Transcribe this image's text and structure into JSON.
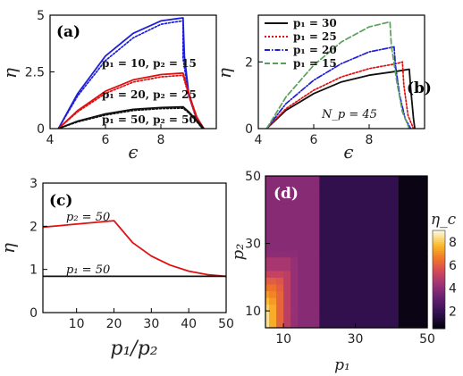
{
  "chart_data": [
    {
      "panel": "(a)",
      "type": "line",
      "xlabel": "ϵ",
      "ylabel": "η",
      "xlim": [
        4,
        10
      ],
      "ylim": [
        0,
        5
      ],
      "xticks": [
        "4",
        "6",
        "8"
      ],
      "yticks": [
        "0",
        "2.5",
        "5"
      ],
      "annotations": [
        "p₁ = 10, p₂ = 15",
        "p₁ = 20, p₂ = 25",
        "p₁ = 50, p₂ = 50"
      ],
      "series": [
        {
          "color": "#1f1fd6",
          "style": "solid",
          "x": [
            4.3,
            5,
            6,
            7,
            8,
            8.6,
            8.8,
            8.85,
            9.0,
            9.3,
            9.5
          ],
          "y": [
            0,
            1.55,
            3.2,
            4.2,
            4.75,
            4.85,
            4.88,
            3.2,
            1.6,
            0.4,
            0
          ]
        },
        {
          "color": "#1f1fd6",
          "style": "dotted",
          "x": [
            4.3,
            5,
            6,
            7,
            8,
            8.6,
            8.8,
            8.8,
            9.0,
            9.3,
            9.5
          ],
          "y": [
            0,
            1.45,
            3.0,
            4.0,
            4.6,
            4.72,
            4.75,
            3.1,
            1.5,
            0.35,
            0
          ]
        },
        {
          "color": "#e01010",
          "style": "solid",
          "x": [
            4.3,
            5,
            6,
            7,
            8,
            8.8,
            8.9,
            9.1,
            9.3,
            9.55
          ],
          "y": [
            0,
            0.8,
            1.65,
            2.15,
            2.38,
            2.45,
            2.0,
            1.2,
            0.5,
            0
          ]
        },
        {
          "color": "#e01010",
          "style": "dotted",
          "x": [
            4.3,
            5,
            6,
            7,
            8,
            8.8,
            8.9,
            9.1,
            9.3,
            9.5
          ],
          "y": [
            0,
            0.75,
            1.55,
            2.05,
            2.28,
            2.35,
            1.9,
            1.1,
            0.45,
            0
          ]
        },
        {
          "color": "#111111",
          "style": "solid",
          "x": [
            4.3,
            5,
            6,
            7,
            8,
            8.8,
            9.0,
            9.3,
            9.55
          ],
          "y": [
            0,
            0.33,
            0.65,
            0.85,
            0.93,
            0.96,
            0.75,
            0.35,
            0
          ]
        },
        {
          "color": "#111111",
          "style": "dotted",
          "x": [
            4.3,
            5,
            6,
            7,
            8,
            8.8,
            9.0,
            9.3,
            9.5
          ],
          "y": [
            0,
            0.3,
            0.6,
            0.8,
            0.88,
            0.9,
            0.7,
            0.3,
            0
          ]
        }
      ]
    },
    {
      "panel": "(b)",
      "type": "line",
      "xlabel": "ϵ",
      "ylabel": "η",
      "xlim": [
        4,
        10
      ],
      "ylim": [
        0,
        3.4
      ],
      "xticks": [
        "4",
        "6",
        "8"
      ],
      "yticks": [
        "0",
        "2"
      ],
      "annotation": "N_p = 45",
      "legend_position": "top-left",
      "series": [
        {
          "name": "p₁ = 30",
          "color": "#111111",
          "style": "solid",
          "x": [
            4.3,
            5,
            6,
            7,
            8,
            9,
            9.45,
            9.5,
            9.6,
            9.65
          ],
          "y": [
            0,
            0.55,
            1.05,
            1.4,
            1.6,
            1.72,
            1.78,
            1.2,
            0.3,
            0
          ]
        },
        {
          "name": "p₁ = 25",
          "color": "#e01010",
          "style": "dotted",
          "x": [
            4.3,
            5,
            6,
            7,
            8,
            9,
            9.2,
            9.25,
            9.4,
            9.6
          ],
          "y": [
            0,
            0.6,
            1.15,
            1.55,
            1.8,
            1.95,
            2.0,
            1.3,
            0.4,
            0
          ]
        },
        {
          "name": "p₁ = 20",
          "color": "#1f1fd6",
          "style": "dashdot",
          "x": [
            4.3,
            5,
            6,
            7,
            8,
            8.9,
            8.95,
            9.1,
            9.3,
            9.5
          ],
          "y": [
            0,
            0.75,
            1.45,
            1.95,
            2.3,
            2.45,
            1.9,
            1.0,
            0.3,
            0
          ]
        },
        {
          "name": "p₁ = 15",
          "color": "#5aa05a",
          "style": "dashed",
          "x": [
            4.3,
            5,
            6,
            7,
            8,
            8.75,
            8.8,
            9.0,
            9.2,
            9.45
          ],
          "y": [
            0,
            0.95,
            1.9,
            2.6,
            3.05,
            3.2,
            2.5,
            1.4,
            0.5,
            0
          ]
        }
      ]
    },
    {
      "panel": "(c)",
      "type": "line",
      "xlabel": "p₁/p₂",
      "ylabel": "η",
      "xlim": [
        1,
        50
      ],
      "ylim": [
        0,
        3
      ],
      "xticks": [
        "10",
        "20",
        "30",
        "40",
        "50"
      ],
      "yticks": [
        "0",
        "1",
        "2",
        "3"
      ],
      "annotations": [
        "p₂ = 50",
        "p₁ = 50"
      ],
      "series": [
        {
          "color": "#e01010",
          "style": "solid",
          "x": [
            1,
            5,
            10,
            15,
            20,
            25,
            30,
            35,
            40,
            45,
            50
          ],
          "y": [
            1.98,
            2.01,
            2.05,
            2.09,
            2.13,
            1.62,
            1.31,
            1.1,
            0.96,
            0.88,
            0.84
          ]
        },
        {
          "color": "#111111",
          "style": "solid",
          "x": [
            1,
            50
          ],
          "y": [
            0.84,
            0.84
          ]
        }
      ]
    },
    {
      "panel": "(d)",
      "type": "heatmap",
      "xlabel": "p₁",
      "ylabel": "p₂",
      "colorbar_label": "η_c",
      "xlim": [
        5,
        50
      ],
      "ylim": [
        5,
        50
      ],
      "xticks": [
        "10",
        "30",
        "50"
      ],
      "yticks": [
        "10",
        "30",
        "50"
      ],
      "colorbar_ticks": [
        "2",
        "4",
        "6",
        "8"
      ],
      "colorbar_range": [
        0.5,
        9
      ],
      "x": [
        5,
        7,
        9,
        11,
        13,
        15,
        17,
        19,
        21,
        23,
        25,
        27,
        29,
        31,
        33,
        35,
        37,
        39,
        41,
        43,
        45,
        47,
        49
      ],
      "y": [
        5,
        7,
        9,
        11,
        13,
        15,
        17,
        19,
        21,
        23,
        25,
        27,
        29,
        31,
        33,
        35,
        37,
        39,
        41,
        43,
        45,
        47,
        49
      ],
      "values": [
        [
          8.5,
          7.5,
          6.2,
          5.0,
          4.2,
          3.9,
          3.9,
          3.9,
          1.9,
          1.9,
          1.9,
          1.9,
          1.9,
          1.9,
          1.9,
          1.9,
          1.9,
          1.9,
          1.9,
          0.8,
          0.8,
          0.8,
          0.8
        ],
        [
          8.5,
          7.5,
          6.2,
          5.0,
          4.2,
          3.9,
          3.9,
          3.9,
          1.9,
          1.9,
          1.9,
          1.9,
          1.9,
          1.9,
          1.9,
          1.9,
          1.9,
          1.9,
          1.9,
          0.8,
          0.8,
          0.8,
          0.8
        ],
        [
          8.5,
          7.5,
          6.2,
          5.0,
          4.2,
          3.9,
          3.9,
          3.9,
          1.9,
          1.9,
          1.9,
          1.9,
          1.9,
          1.9,
          1.9,
          1.9,
          1.9,
          1.9,
          1.9,
          0.8,
          0.8,
          0.8,
          0.8
        ],
        [
          8.2,
          7.5,
          6.2,
          5.0,
          4.2,
          3.9,
          3.9,
          3.9,
          1.9,
          1.9,
          1.9,
          1.9,
          1.9,
          1.9,
          1.9,
          1.9,
          1.9,
          1.9,
          1.9,
          0.8,
          0.8,
          0.8,
          0.8
        ],
        [
          7.8,
          7.2,
          6.2,
          5.0,
          4.2,
          3.9,
          3.9,
          3.9,
          1.9,
          1.9,
          1.9,
          1.9,
          1.9,
          1.9,
          1.9,
          1.9,
          1.9,
          1.9,
          1.9,
          0.8,
          0.8,
          0.8,
          0.8
        ],
        [
          7.2,
          6.8,
          6.2,
          5.0,
          4.2,
          3.9,
          3.9,
          3.9,
          1.9,
          1.9,
          1.9,
          1.9,
          1.9,
          1.9,
          1.9,
          1.9,
          1.9,
          1.9,
          1.9,
          0.8,
          0.8,
          0.8,
          0.8
        ],
        [
          6.5,
          6.5,
          6.0,
          5.0,
          4.2,
          3.9,
          3.9,
          3.9,
          1.9,
          1.9,
          1.9,
          1.9,
          1.9,
          1.9,
          1.9,
          1.9,
          1.9,
          1.9,
          1.9,
          0.8,
          0.8,
          0.8,
          0.8
        ],
        [
          6.0,
          6.0,
          5.8,
          5.0,
          4.2,
          3.9,
          3.9,
          3.9,
          1.9,
          1.9,
          1.9,
          1.9,
          1.9,
          1.9,
          1.9,
          1.9,
          1.9,
          1.9,
          1.9,
          0.8,
          0.8,
          0.8,
          0.8
        ],
        [
          5.2,
          5.2,
          5.2,
          5.0,
          4.2,
          3.9,
          3.9,
          3.9,
          1.9,
          1.9,
          1.9,
          1.9,
          1.9,
          1.9,
          1.9,
          1.9,
          1.9,
          1.9,
          1.9,
          0.8,
          0.8,
          0.8,
          0.8
        ],
        [
          4.6,
          4.6,
          4.6,
          4.6,
          4.2,
          3.9,
          3.9,
          3.9,
          1.9,
          1.9,
          1.9,
          1.9,
          1.9,
          1.9,
          1.9,
          1.9,
          1.9,
          1.9,
          1.9,
          0.8,
          0.8,
          0.8,
          0.8
        ],
        [
          4.6,
          4.6,
          4.6,
          4.6,
          4.2,
          3.9,
          3.9,
          3.9,
          1.9,
          1.9,
          1.9,
          1.9,
          1.9,
          1.9,
          1.9,
          1.9,
          1.9,
          1.9,
          1.9,
          0.8,
          0.8,
          0.8,
          0.8
        ],
        [
          4.0,
          4.0,
          4.0,
          4.0,
          4.0,
          3.9,
          3.9,
          3.9,
          1.9,
          1.9,
          1.9,
          1.9,
          1.9,
          1.9,
          1.9,
          1.9,
          1.9,
          1.9,
          1.9,
          0.8,
          0.8,
          0.8,
          0.8
        ],
        [
          3.9,
          3.9,
          3.9,
          3.9,
          3.9,
          3.9,
          3.9,
          3.9,
          1.9,
          1.9,
          1.9,
          1.9,
          1.9,
          1.9,
          1.9,
          1.9,
          1.9,
          1.9,
          1.9,
          0.8,
          0.8,
          0.8,
          0.8
        ],
        [
          3.9,
          3.9,
          3.9,
          3.9,
          3.9,
          3.9,
          3.9,
          3.9,
          1.9,
          1.9,
          1.9,
          1.9,
          1.9,
          1.9,
          1.9,
          1.9,
          1.9,
          1.9,
          1.9,
          0.8,
          0.8,
          0.8,
          0.8
        ],
        [
          3.9,
          3.9,
          3.9,
          3.9,
          3.9,
          3.9,
          3.9,
          3.9,
          1.9,
          1.9,
          1.9,
          1.9,
          1.9,
          1.9,
          1.9,
          1.9,
          1.9,
          1.9,
          1.9,
          0.8,
          0.8,
          0.8,
          0.8
        ],
        [
          3.9,
          3.9,
          3.9,
          3.9,
          3.9,
          3.9,
          3.9,
          3.9,
          1.9,
          1.9,
          1.9,
          1.9,
          1.9,
          1.9,
          1.9,
          1.9,
          1.9,
          1.9,
          1.9,
          0.8,
          0.8,
          0.8,
          0.8
        ],
        [
          3.9,
          3.9,
          3.9,
          3.9,
          3.9,
          3.9,
          3.9,
          3.9,
          1.9,
          1.9,
          1.9,
          1.9,
          1.9,
          1.9,
          1.9,
          1.9,
          1.9,
          1.9,
          1.9,
          0.8,
          0.8,
          0.8,
          0.8
        ],
        [
          3.9,
          3.9,
          3.9,
          3.9,
          3.9,
          3.9,
          3.9,
          3.9,
          1.9,
          1.9,
          1.9,
          1.9,
          1.9,
          1.9,
          1.9,
          1.9,
          1.9,
          1.9,
          1.9,
          0.8,
          0.8,
          0.8,
          0.8
        ],
        [
          3.9,
          3.9,
          3.9,
          3.9,
          3.9,
          3.9,
          3.9,
          3.9,
          1.9,
          1.9,
          1.9,
          1.9,
          1.9,
          1.9,
          1.9,
          1.9,
          1.9,
          1.9,
          1.9,
          0.8,
          0.8,
          0.8,
          0.8
        ],
        [
          3.9,
          3.9,
          3.9,
          3.9,
          3.9,
          3.9,
          3.9,
          3.9,
          1.9,
          1.9,
          1.9,
          1.9,
          1.9,
          1.9,
          1.9,
          1.9,
          1.9,
          1.9,
          1.9,
          0.8,
          0.8,
          0.8,
          0.8
        ],
        [
          3.9,
          3.9,
          3.9,
          3.9,
          3.9,
          3.9,
          3.9,
          3.9,
          1.9,
          1.9,
          1.9,
          1.9,
          1.9,
          1.9,
          1.9,
          1.9,
          1.9,
          1.9,
          1.9,
          0.8,
          0.8,
          0.8,
          0.8
        ],
        [
          3.9,
          3.9,
          3.9,
          3.9,
          3.9,
          3.9,
          3.9,
          3.9,
          1.9,
          1.9,
          1.9,
          1.9,
          1.9,
          1.9,
          1.9,
          1.9,
          1.9,
          1.9,
          1.9,
          0.8,
          0.8,
          0.8,
          0.8
        ],
        [
          3.9,
          3.9,
          3.9,
          3.9,
          3.9,
          3.9,
          3.9,
          3.9,
          1.9,
          1.9,
          1.9,
          1.9,
          1.9,
          1.9,
          1.9,
          1.9,
          1.9,
          1.9,
          1.9,
          0.8,
          0.8,
          0.8,
          0.8
        ]
      ]
    }
  ]
}
